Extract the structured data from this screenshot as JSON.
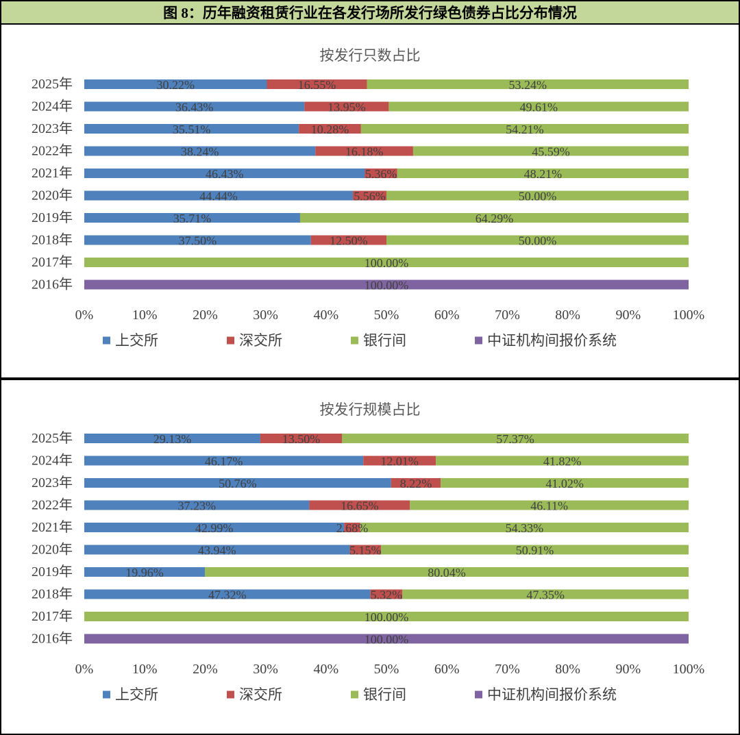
{
  "header": {
    "title": "图 8：历年融资租赁行业在各发行场所发行绿色债券占比分布情况",
    "background": "#c4d79b"
  },
  "chart_data": [
    {
      "type": "bar",
      "orientation": "horizontal",
      "stacked": true,
      "title": "按发行只数占比",
      "categories": [
        "2025年",
        "2024年",
        "2023年",
        "2022年",
        "2021年",
        "2020年",
        "2019年",
        "2018年",
        "2017年",
        "2016年"
      ],
      "series": [
        {
          "name": "上交所",
          "color": "#4f81bd",
          "values": [
            30.22,
            36.43,
            35.51,
            38.24,
            46.43,
            44.44,
            35.71,
            37.5,
            null,
            null
          ]
        },
        {
          "name": "深交所",
          "color": "#c0504d",
          "values": [
            16.55,
            13.95,
            10.28,
            16.18,
            5.36,
            5.56,
            null,
            12.5,
            null,
            null
          ]
        },
        {
          "name": "银行间",
          "color": "#9bbb59",
          "values": [
            53.24,
            49.61,
            54.21,
            45.59,
            48.21,
            50.0,
            64.29,
            50.0,
            100.0,
            null
          ]
        },
        {
          "name": "中证机构间报价系统",
          "color": "#8064a2",
          "values": [
            null,
            null,
            null,
            null,
            null,
            null,
            null,
            null,
            null,
            100.0
          ]
        }
      ],
      "data_labels": true,
      "xlim": [
        0,
        100
      ],
      "x_tick_labels": [
        "0%",
        "10%",
        "20%",
        "30%",
        "40%",
        "50%",
        "60%",
        "70%",
        "80%",
        "90%",
        "100%"
      ],
      "grid": false,
      "legend": "bottom"
    },
    {
      "type": "bar",
      "orientation": "horizontal",
      "stacked": true,
      "title": "按发行规模占比",
      "categories": [
        "2025年",
        "2024年",
        "2023年",
        "2022年",
        "2021年",
        "2020年",
        "2019年",
        "2018年",
        "2017年",
        "2016年"
      ],
      "series": [
        {
          "name": "上交所",
          "color": "#4f81bd",
          "values": [
            29.13,
            46.17,
            50.76,
            37.23,
            42.99,
            43.94,
            19.96,
            47.32,
            null,
            null
          ]
        },
        {
          "name": "深交所",
          "color": "#c0504d",
          "values": [
            13.5,
            12.01,
            8.22,
            16.65,
            2.68,
            5.15,
            null,
            5.32,
            null,
            null
          ]
        },
        {
          "name": "银行间",
          "color": "#9bbb59",
          "values": [
            57.37,
            41.82,
            41.02,
            46.11,
            54.33,
            50.91,
            80.04,
            47.35,
            100.0,
            null
          ]
        },
        {
          "name": "中证机构间报价系统",
          "color": "#8064a2",
          "values": [
            null,
            null,
            null,
            null,
            null,
            null,
            null,
            null,
            null,
            100.0
          ]
        }
      ],
      "data_labels": true,
      "xlim": [
        0,
        100
      ],
      "x_tick_labels": [
        "0%",
        "10%",
        "20%",
        "30%",
        "40%",
        "50%",
        "60%",
        "70%",
        "80%",
        "90%",
        "100%"
      ],
      "grid": false,
      "legend": "bottom"
    }
  ]
}
